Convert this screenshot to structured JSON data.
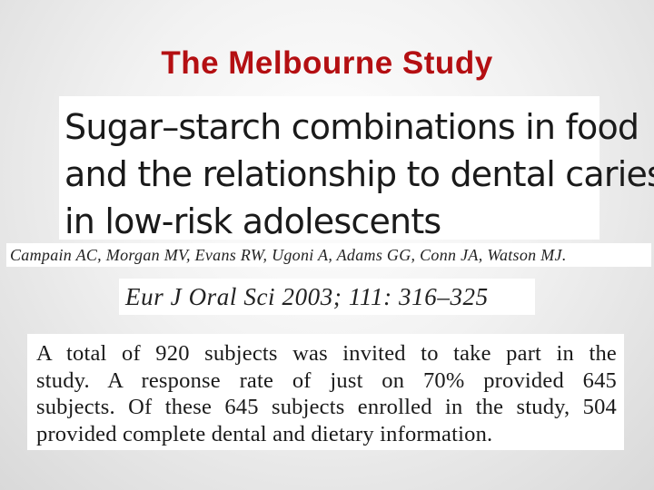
{
  "slide": {
    "title": "The Melbourne Study"
  },
  "paper": {
    "title_lines": [
      "Sugar–starch combinations in food",
      "and the relationship to dental caries",
      "in low-risk adolescents"
    ],
    "authors": "Campain AC, Morgan MV, Evans RW, Ugoni A, Adams GG, Conn JA, Watson MJ.",
    "citation": "Eur J Oral Sci 2003; 111: 316–325",
    "abstract_lines": [
      "A total of 920 subjects was invited to take part in the",
      "study. A response rate of just on 70% provided 645",
      "subjects. Of these 645 subjects enrolled in the study, 504",
      "provided complete dental and dietary information."
    ]
  }
}
